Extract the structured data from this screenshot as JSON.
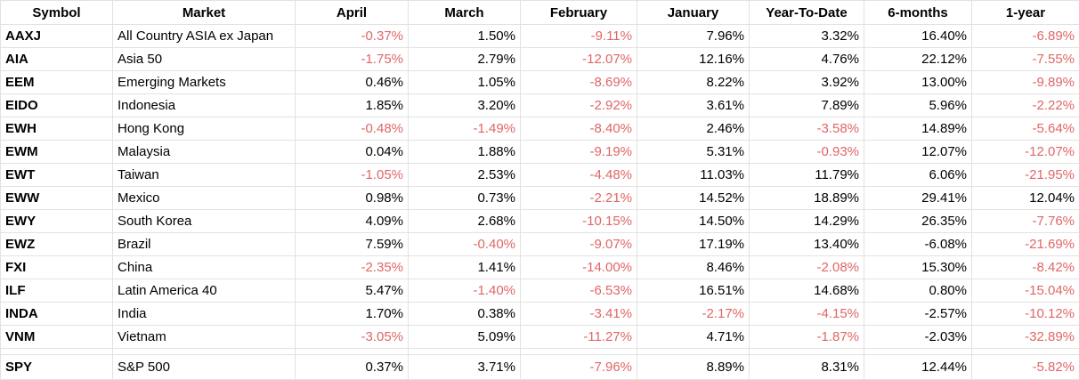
{
  "table": {
    "headers": [
      "Symbol",
      "Market",
      "April",
      "March",
      "February",
      "January",
      "Year-To-Date",
      "6-months",
      "1-year"
    ],
    "rows": [
      {
        "symbol": "AAXJ",
        "market": "All Country ASIA ex Japan",
        "values": [
          "-0.37%",
          "1.50%",
          "-9.11%",
          "7.96%",
          "3.32%",
          "16.40%",
          "-6.89%"
        ]
      },
      {
        "symbol": "AIA",
        "market": "Asia 50",
        "values": [
          "-1.75%",
          "2.79%",
          "-12.07%",
          "12.16%",
          "4.76%",
          "22.12%",
          "-7.55%"
        ]
      },
      {
        "symbol": "EEM",
        "market": "Emerging Markets",
        "values": [
          "0.46%",
          "1.05%",
          "-8.69%",
          "8.22%",
          "3.92%",
          "13.00%",
          "-9.89%"
        ]
      },
      {
        "symbol": "EIDO",
        "market": "Indonesia",
        "values": [
          "1.85%",
          "3.20%",
          "-2.92%",
          "3.61%",
          "7.89%",
          "5.96%",
          "-2.22%"
        ]
      },
      {
        "symbol": "EWH",
        "market": "Hong Kong",
        "values": [
          "-0.48%",
          "-1.49%",
          "-8.40%",
          "2.46%",
          "-3.58%",
          "14.89%",
          "-5.64%"
        ]
      },
      {
        "symbol": "EWM",
        "market": "Malaysia",
        "values": [
          "0.04%",
          "1.88%",
          "-9.19%",
          "5.31%",
          "-0.93%",
          "12.07%",
          "-12.07%"
        ]
      },
      {
        "symbol": "EWT",
        "market": "Taiwan",
        "values": [
          "-1.05%",
          "2.53%",
          "-4.48%",
          "11.03%",
          "11.79%",
          "6.06%",
          "-21.95%"
        ]
      },
      {
        "symbol": "EWW",
        "market": "Mexico",
        "values": [
          "0.98%",
          "0.73%",
          "-2.21%",
          "14.52%",
          "18.89%",
          "29.41%",
          "12.04%"
        ]
      },
      {
        "symbol": "EWY",
        "market": "South Korea",
        "values": [
          "4.09%",
          "2.68%",
          "-10.15%",
          "14.50%",
          "14.29%",
          "26.35%",
          "-7.76%"
        ]
      },
      {
        "symbol": "EWZ",
        "market": "Brazil",
        "values": [
          "7.59%",
          "-0.40%",
          "-9.07%",
          "17.19%",
          "13.40%",
          "-6.08%",
          "-21.69%"
        ]
      },
      {
        "symbol": "FXI",
        "market": "China",
        "values": [
          "-2.35%",
          "1.41%",
          "-14.00%",
          "8.46%",
          "-2.08%",
          "15.30%",
          "-8.42%"
        ]
      },
      {
        "symbol": "ILF",
        "market": "Latin America 40",
        "values": [
          "5.47%",
          "-1.40%",
          "-6.53%",
          "16.51%",
          "14.68%",
          "0.80%",
          "-15.04%"
        ]
      },
      {
        "symbol": "INDA",
        "market": "India",
        "values": [
          "1.70%",
          "0.38%",
          "-3.41%",
          "-2.17%",
          "-4.15%",
          "-2.57%",
          "-10.12%"
        ]
      },
      {
        "symbol": "VNM",
        "market": "Vietnam",
        "values": [
          "-3.05%",
          "5.09%",
          "-11.27%",
          "4.71%",
          "-1.87%",
          "-2.03%",
          "-32.89%"
        ]
      }
    ],
    "spy": {
      "symbol": "SPY",
      "market": "S&P 500",
      "values": [
        "0.37%",
        "3.71%",
        "-7.96%",
        "8.89%",
        "8.31%",
        "12.44%",
        "-5.82%"
      ]
    },
    "red_columns": [
      0,
      1,
      2,
      3,
      4,
      6
    ],
    "colors": {
      "negative": "#e06666",
      "text": "#000000",
      "grid": "#e2e2e2"
    }
  }
}
